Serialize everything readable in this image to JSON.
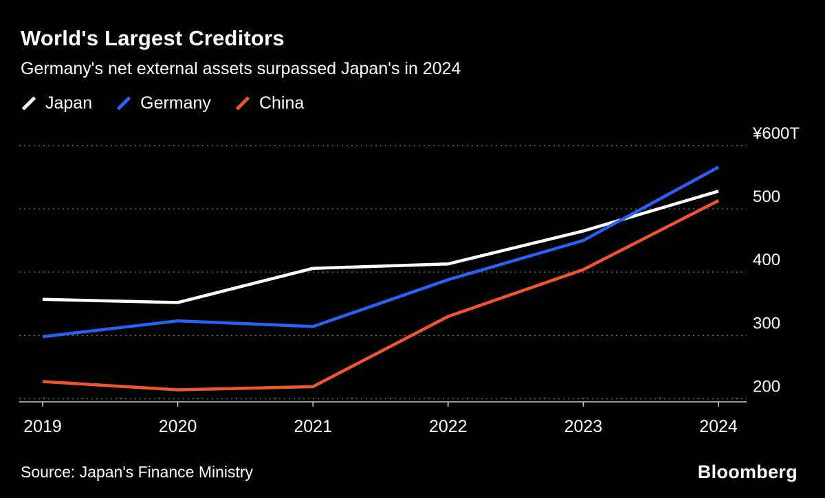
{
  "header": {
    "title": "World's Largest Creditors",
    "subtitle": "Germany's net external assets surpassed Japan's in 2024"
  },
  "footer": {
    "source": "Source: Japan's Finance Ministry",
    "brand": "Bloomberg"
  },
  "chart_data": {
    "type": "line",
    "title": "World's Largest Creditors",
    "subtitle": "Germany's net external assets surpassed Japan's in 2024",
    "categories": [
      "2019",
      "2020",
      "2021",
      "2022",
      "2023",
      "2024"
    ],
    "series": [
      {
        "name": "Japan",
        "color": "#ffffff",
        "values": [
          357,
          352,
          406,
          413,
          465,
          528
        ]
      },
      {
        "name": "Germany",
        "color": "#2762f5",
        "values": [
          298,
          323,
          314,
          388,
          450,
          566
        ]
      },
      {
        "name": "China",
        "color": "#f1552c",
        "values": [
          227,
          214,
          219,
          330,
          404,
          513
        ]
      }
    ],
    "ylabel": "",
    "xlabel": "",
    "ylim": [
      195,
      600
    ],
    "yticks": [
      {
        "value": 600,
        "label": "¥600T"
      },
      {
        "value": 500,
        "label": "500"
      },
      {
        "value": 400,
        "label": "400"
      },
      {
        "value": 300,
        "label": "300"
      },
      {
        "value": 200,
        "label": "200"
      }
    ],
    "grid": "dotted-horizontal",
    "legend_position": "top-left",
    "axis_color": "#d0d0d0",
    "grid_color": "#6e6e6e"
  }
}
